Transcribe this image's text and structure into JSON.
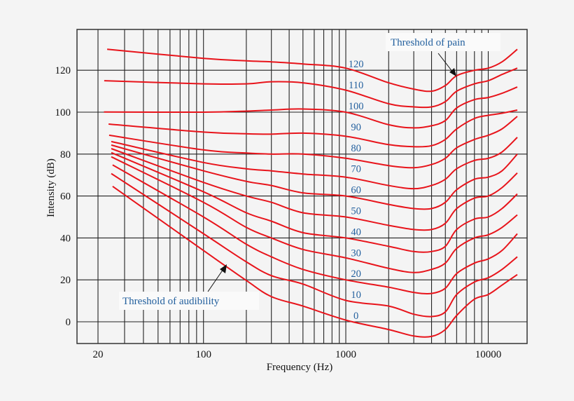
{
  "chart_data": {
    "type": "line",
    "title": "",
    "xlabel": "Frequency (Hz)",
    "ylabel": "Intensity (dB)",
    "x_scale": "log",
    "xlim": [
      14,
      19000
    ],
    "ylim": [
      -10,
      139
    ],
    "grid": true,
    "x_ticks": [
      20,
      100,
      1000,
      10000
    ],
    "x_tick_labels": [
      "20",
      "100",
      "1000",
      "10000"
    ],
    "y_ticks": [
      0,
      20,
      40,
      60,
      80,
      100,
      120
    ],
    "y_tick_labels": [
      "0",
      "20",
      "40",
      "60",
      "80",
      "100",
      "120"
    ],
    "line_color": "#e8141b",
    "label_color": "#23609e",
    "frequencies": [
      100,
      200,
      300,
      500,
      1000,
      2000,
      3000,
      4000,
      5000,
      6000,
      8000,
      10000,
      12500,
      16000
    ],
    "series": [
      {
        "name": "0",
        "start": [
          25,
          64.6
        ],
        "values": [
          34,
          19.7,
          12,
          7.5,
          0.8,
          -3.7,
          -6.8,
          -7,
          -3.7,
          3,
          10.8,
          13,
          17.5,
          22.5
        ]
      },
      {
        "name": "10",
        "start": [
          24.5,
          70.7
        ],
        "values": [
          42,
          28.6,
          22,
          18,
          10.2,
          7.5,
          3.6,
          2.5,
          4.7,
          13,
          19,
          21,
          25,
          31
        ]
      },
      {
        "name": "20",
        "start": [
          25,
          74.8
        ],
        "values": [
          50,
          37,
          31,
          25,
          20,
          16.5,
          14,
          13.5,
          16,
          23,
          28,
          30,
          34,
          42
        ]
      },
      {
        "name": "30",
        "start": [
          24.5,
          78.7
        ],
        "values": [
          57,
          45,
          40,
          34.5,
          30.5,
          25.5,
          23.5,
          25,
          28,
          35,
          40,
          41.5,
          45,
          51
        ]
      },
      {
        "name": "40",
        "start": [
          24.5,
          80.7
        ],
        "values": [
          62,
          52,
          48,
          42.5,
          40,
          36,
          33.5,
          33.5,
          36,
          44,
          49,
          50,
          54,
          61
        ]
      },
      {
        "name": "50",
        "start": [
          24.5,
          82.6
        ],
        "values": [
          66.5,
          60,
          57,
          52,
          50,
          46,
          44,
          44,
          47,
          54,
          59,
          60,
          64,
          71
        ]
      },
      {
        "name": "60",
        "start": [
          24.5,
          84.3
        ],
        "values": [
          72,
          67,
          65,
          61.5,
          60,
          56,
          54,
          54,
          57,
          63,
          68,
          69,
          72,
          80
        ]
      },
      {
        "name": "70",
        "start": [
          24.5,
          86
        ],
        "values": [
          76,
          73,
          72,
          70.5,
          69,
          65,
          63.5,
          65,
          68,
          73,
          77,
          78,
          81,
          88
        ]
      },
      {
        "name": "80",
        "start": [
          23.7,
          89
        ],
        "values": [
          82,
          80.5,
          80,
          80,
          78,
          74.5,
          73.5,
          75,
          78,
          83,
          87,
          89,
          92,
          98
        ]
      },
      {
        "name": "90",
        "start": [
          23.5,
          94.3
        ],
        "values": [
          90.5,
          89.7,
          89.5,
          90,
          88.5,
          84.5,
          83.5,
          84,
          87,
          92,
          97,
          98.5,
          99.5,
          101
        ]
      },
      {
        "name": "100",
        "start": [
          21.9,
          100.1
        ],
        "values": [
          100,
          100.5,
          101,
          101.5,
          100,
          94,
          92.5,
          93.5,
          96,
          102,
          106,
          107,
          109,
          112
        ]
      },
      {
        "name": "110",
        "start": [
          22,
          115
        ],
        "values": [
          113.5,
          113.5,
          114.5,
          114,
          110.5,
          104,
          102.5,
          102.5,
          105,
          110,
          113.5,
          115,
          118,
          121
        ]
      },
      {
        "name": "120",
        "start": [
          23,
          130
        ],
        "values": [
          125.7,
          124.5,
          124,
          123,
          121,
          114,
          111,
          110,
          112.7,
          117.4,
          120,
          121,
          124,
          130
        ]
      }
    ],
    "annotations": [
      {
        "text": "Threshold of pain",
        "points_to": [
          6500,
          117
        ]
      },
      {
        "text": "Threshold of audibility",
        "points_to": [
          130,
          27
        ]
      }
    ]
  }
}
